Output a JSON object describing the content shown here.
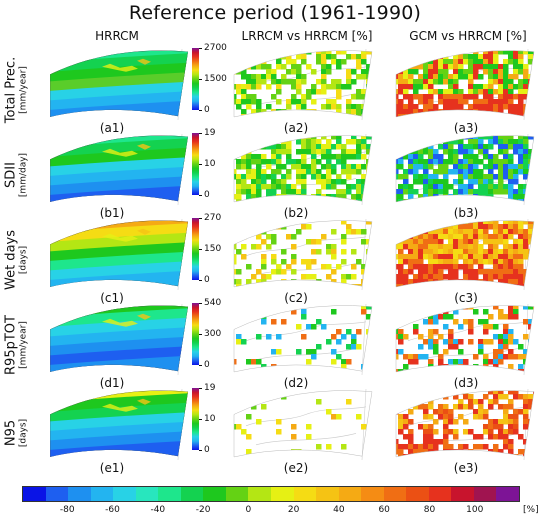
{
  "title": "Reference period (1961-1990)",
  "columns": [
    "HRRCM",
    "LRRCM vs HRRCM [%]",
    "GCM vs HRRCM [%]"
  ],
  "rows": [
    {
      "name": "Total Prec.",
      "unit": "[mm/year]",
      "labels": [
        "(a1)",
        "(a2)",
        "(a3)"
      ],
      "cbar_ticks": [
        "2700",
        "1500",
        "0"
      ]
    },
    {
      "name": "SDII",
      "unit": "[mm/day]",
      "labels": [
        "(b1)",
        "(b2)",
        "(b3)"
      ],
      "cbar_ticks": [
        "19",
        "10",
        "0"
      ]
    },
    {
      "name": "Wet days",
      "unit": "[days]",
      "labels": [
        "(c1)",
        "(c2)",
        "(c3)"
      ],
      "cbar_ticks": [
        "270",
        "150",
        "0"
      ]
    },
    {
      "name": "R95pTOT",
      "unit": "[mm/year]",
      "labels": [
        "(d1)",
        "(d2)",
        "(d3)"
      ],
      "cbar_ticks": [
        "540",
        "300",
        "0"
      ]
    },
    {
      "name": "N95",
      "unit": "[days]",
      "labels": [
        "(e1)",
        "(e2)",
        "(e3)"
      ],
      "cbar_ticks": [
        "19",
        "10",
        "0"
      ]
    }
  ],
  "bottom_colorbar": {
    "ticks": [
      "-80",
      "-60",
      "-40",
      "-20",
      "0",
      "20",
      "40",
      "60",
      "80",
      "100"
    ],
    "unit": "[%]",
    "colors": [
      "#0a14e6",
      "#1e5ff0",
      "#1e90f0",
      "#23b4f0",
      "#28d2e6",
      "#28e6be",
      "#1ee68c",
      "#14d250",
      "#1ec81e",
      "#64d214",
      "#b4e614",
      "#e6f014",
      "#f5dc14",
      "#f5c314",
      "#f5aa14",
      "#f58c14",
      "#f06e14",
      "#eb5014",
      "#e6321e",
      "#c8142d",
      "#a01450",
      "#7d1496"
    ]
  },
  "cbar_colors": [
    "#7d1496",
    "#c8142d",
    "#e6321e",
    "#f06e14",
    "#f5aa14",
    "#f5dc14",
    "#b4e614",
    "#64d214",
    "#1ec81e",
    "#14d250",
    "#1ee68c",
    "#28d2e6",
    "#23b4f0",
    "#1e5ff0",
    "#0a14e6"
  ]
}
